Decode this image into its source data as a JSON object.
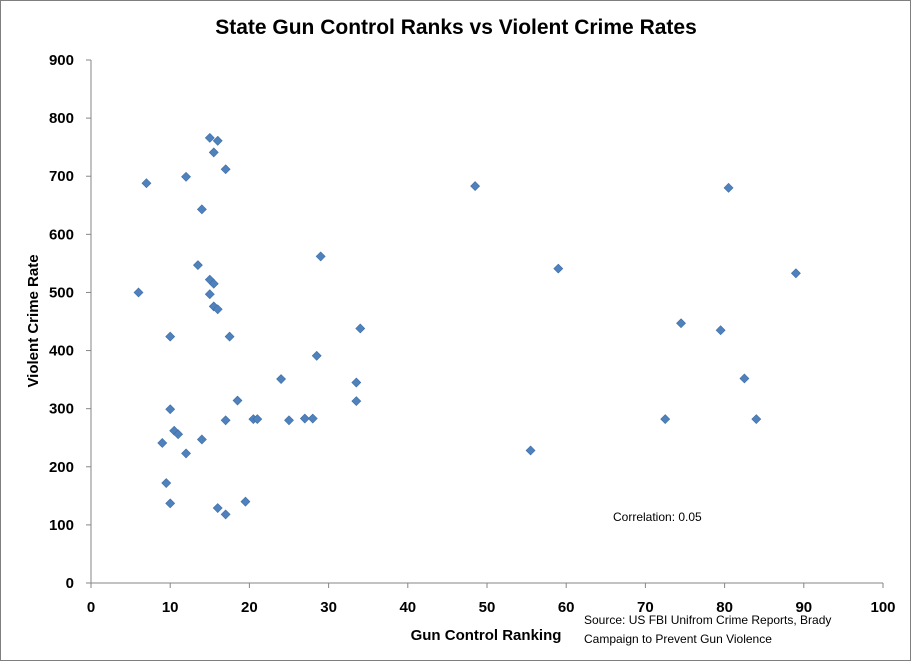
{
  "chart_data": {
    "type": "scatter",
    "title": "State Gun Control Ranks vs Violent Crime Rates",
    "xlabel": "Gun Control Ranking",
    "ylabel": "Violent Crime Rate",
    "xlim": [
      0,
      100
    ],
    "ylim": [
      0,
      900
    ],
    "xticks": [
      0,
      10,
      20,
      30,
      40,
      50,
      60,
      70,
      80,
      90,
      100
    ],
    "yticks": [
      0,
      100,
      200,
      300,
      400,
      500,
      600,
      700,
      800,
      900
    ],
    "grid": false,
    "legend": "none",
    "marker": "diamond",
    "marker_color": "#4f81bd",
    "annotation": "Correlation: 0.05",
    "source_lines": [
      "Source: US FBI Unifrom Crime Reports, Brady",
      "Campaign to Prevent Gun Violence"
    ],
    "points": [
      [
        6,
        500
      ],
      [
        7,
        688
      ],
      [
        9,
        241
      ],
      [
        9.5,
        172
      ],
      [
        10,
        424
      ],
      [
        10,
        299
      ],
      [
        10,
        137
      ],
      [
        10.5,
        262
      ],
      [
        11,
        256
      ],
      [
        12,
        699
      ],
      [
        12,
        223
      ],
      [
        13.5,
        547
      ],
      [
        14,
        643
      ],
      [
        14,
        247
      ],
      [
        15,
        766
      ],
      [
        15,
        522
      ],
      [
        15,
        497
      ],
      [
        15.5,
        741
      ],
      [
        15.5,
        515
      ],
      [
        15.5,
        476
      ],
      [
        16,
        761
      ],
      [
        16,
        471
      ],
      [
        16,
        129
      ],
      [
        17,
        712
      ],
      [
        17,
        280
      ],
      [
        17,
        118
      ],
      [
        17.5,
        424
      ],
      [
        18.5,
        314
      ],
      [
        19.5,
        140
      ],
      [
        20.5,
        282
      ],
      [
        21,
        282
      ],
      [
        24,
        351
      ],
      [
        25,
        280
      ],
      [
        27,
        283
      ],
      [
        28,
        283
      ],
      [
        28.5,
        391
      ],
      [
        29,
        562
      ],
      [
        33.5,
        345
      ],
      [
        33.5,
        313
      ],
      [
        34,
        438
      ],
      [
        48.5,
        683
      ],
      [
        55.5,
        228
      ],
      [
        59,
        541
      ],
      [
        72.5,
        282
      ],
      [
        74.5,
        447
      ],
      [
        79.5,
        435
      ],
      [
        80.5,
        680
      ],
      [
        82.5,
        352
      ],
      [
        84,
        282
      ],
      [
        89,
        533
      ]
    ]
  }
}
